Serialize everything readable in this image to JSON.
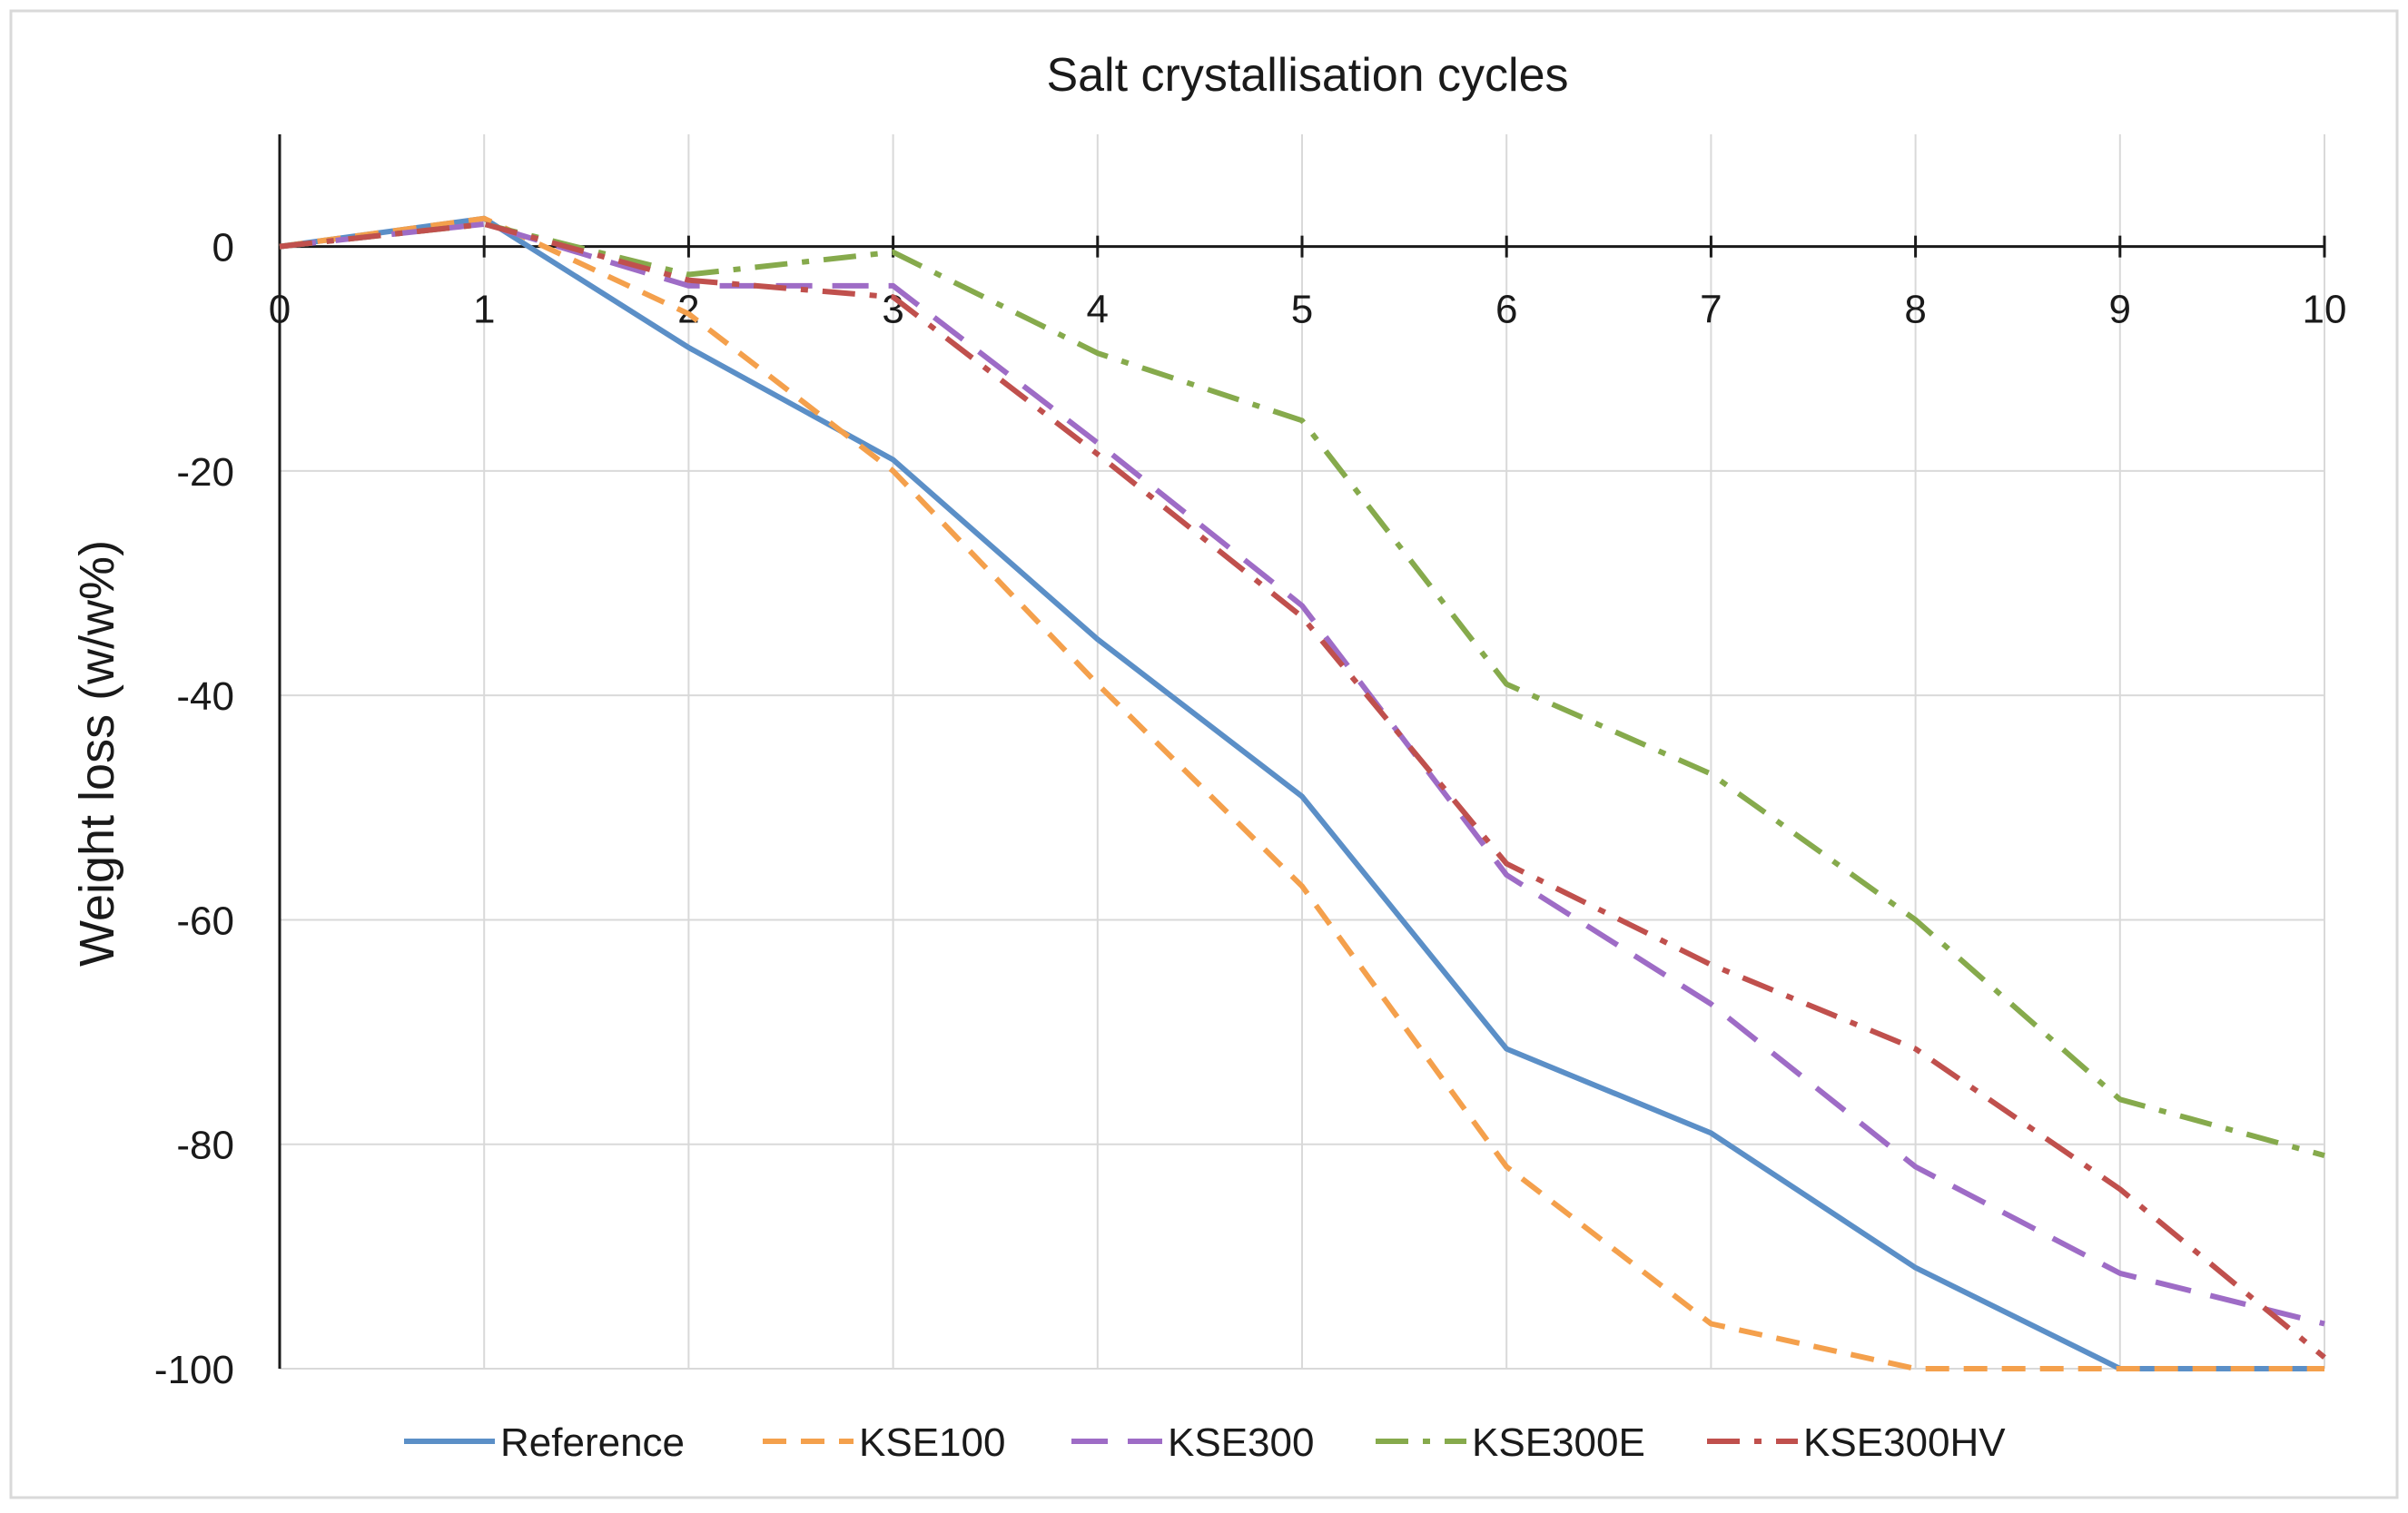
{
  "chart_data": {
    "type": "line",
    "title": "Salt crystallisation cycles",
    "xlabel": "",
    "ylabel": "Weight loss (w/w%)",
    "xlim": [
      0,
      10
    ],
    "ylim": [
      -100,
      10
    ],
    "x_ticks": [
      0,
      1,
      2,
      3,
      4,
      5,
      6,
      7,
      8,
      9,
      10
    ],
    "y_ticks": [
      0,
      -20,
      -40,
      -60,
      -80,
      -100
    ],
    "grid": true,
    "legend_position": "bottom",
    "x": [
      0,
      1,
      2,
      3,
      4,
      5,
      6,
      7,
      8,
      9,
      10
    ],
    "series": [
      {
        "name": "Reference",
        "color": "#5b8fc7",
        "dash": "solid",
        "values": [
          0,
          2.5,
          -9,
          -19,
          -35,
          -49,
          -71.5,
          -79,
          -91,
          -100,
          -100
        ]
      },
      {
        "name": "KSE100",
        "color": "#f4a04c",
        "dash": "dash",
        "values": [
          0,
          2.5,
          -6,
          -20,
          -39,
          -57,
          -82,
          -96,
          -100,
          -100,
          -100
        ]
      },
      {
        "name": "KSE300",
        "color": "#9e6cc6",
        "dash": "dash-long",
        "values": [
          0,
          2,
          -3.5,
          -3.5,
          -17.5,
          -32,
          -56,
          -67.5,
          -82,
          -91.5,
          -96
        ]
      },
      {
        "name": "KSE300E",
        "color": "#86aa4c",
        "dash": "dash-dot",
        "values": [
          0,
          2,
          -2.5,
          -0.5,
          -9.5,
          -15.5,
          -39,
          -47,
          -60,
          -76,
          -81
        ]
      },
      {
        "name": "KSE300HV",
        "color": "#c0504d",
        "dash": "dash-dot",
        "values": [
          0,
          2,
          -3,
          -4.5,
          -18.5,
          -33,
          -55,
          -64,
          -71.5,
          -84,
          -99
        ]
      }
    ]
  }
}
